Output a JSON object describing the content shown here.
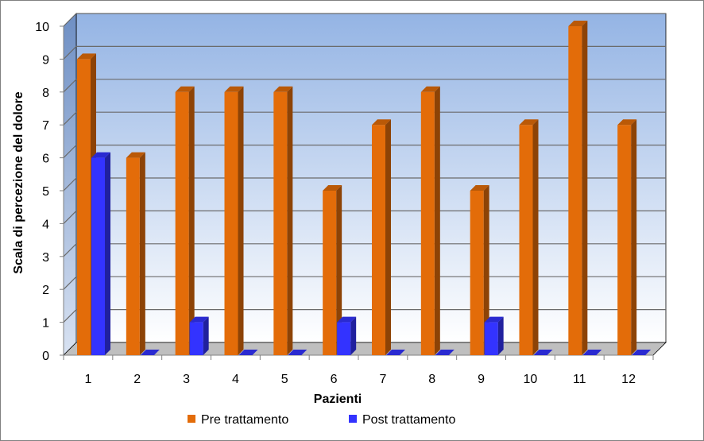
{
  "chart_data": {
    "type": "bar",
    "title": "",
    "xlabel": "Pazienti",
    "ylabel": "Scala di percezione del dolore",
    "categories": [
      "1",
      "2",
      "3",
      "4",
      "5",
      "6",
      "7",
      "8",
      "9",
      "10",
      "11",
      "12"
    ],
    "series": [
      {
        "name": "Pre trattamento",
        "color": "#E36C09",
        "values": [
          9,
          6,
          8,
          8,
          8,
          5,
          7,
          8,
          5,
          7,
          10,
          7
        ]
      },
      {
        "name": "Post trattamento",
        "color": "#3333FF",
        "values": [
          6,
          0,
          1,
          0,
          0,
          1,
          0,
          0,
          1,
          0,
          0,
          0
        ]
      }
    ],
    "ylim": [
      0,
      10
    ],
    "yticks": [
      "0",
      "1",
      "2",
      "3",
      "4",
      "5",
      "6",
      "7",
      "8",
      "9",
      "10"
    ],
    "grid": true,
    "legend": "bottom",
    "style": "3d-column"
  }
}
